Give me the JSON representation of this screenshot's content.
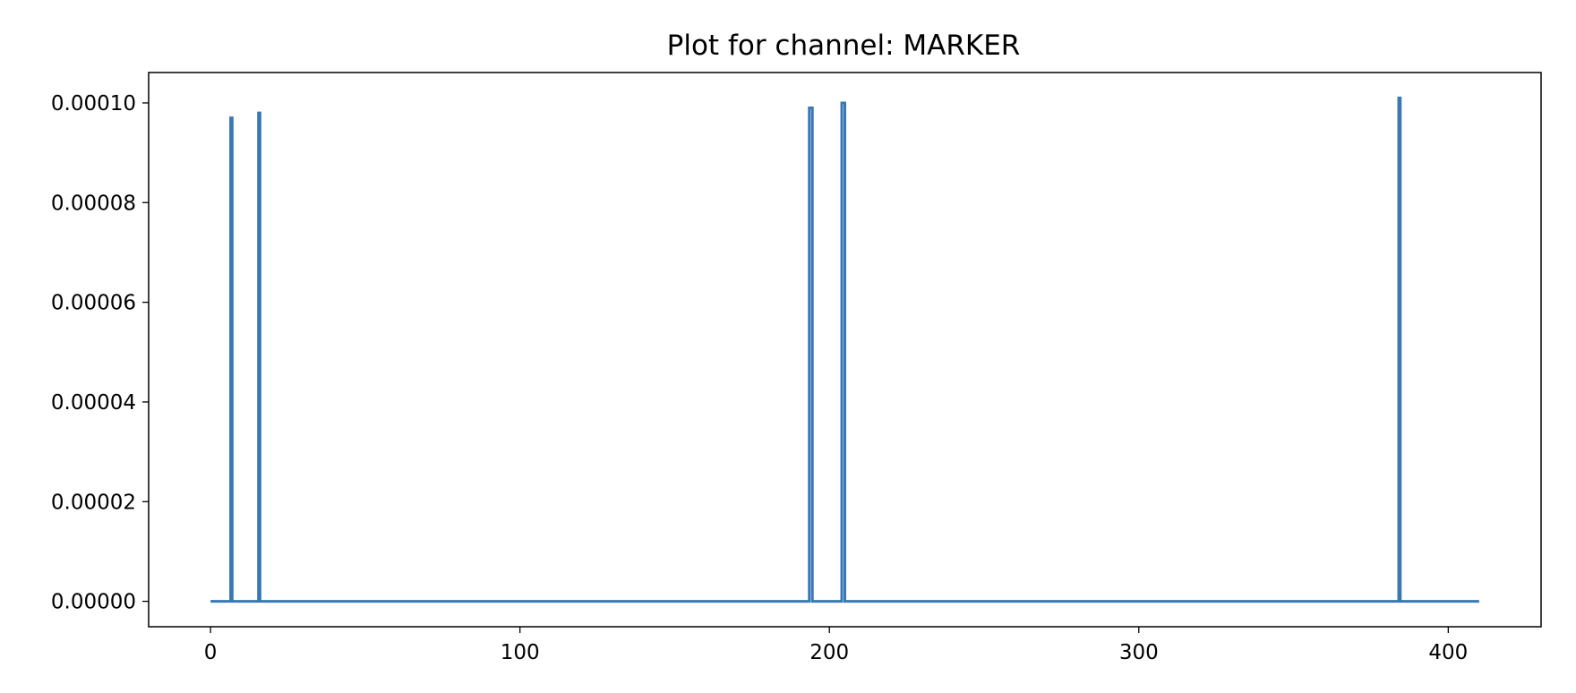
{
  "chart_data": {
    "type": "line",
    "title": "Plot for channel: MARKER",
    "xlabel": "",
    "ylabel": "",
    "xlim": [
      -20,
      430
    ],
    "ylim": [
      -5.1e-06,
      0.0001061
    ],
    "xticks": [
      0,
      100,
      200,
      300,
      400
    ],
    "xtick_labels": [
      "0",
      "100",
      "200",
      "300",
      "400"
    ],
    "yticks": [
      0,
      2e-05,
      4e-05,
      6e-05,
      8e-05,
      0.0001
    ],
    "ytick_labels": [
      "0.00000",
      "0.00002",
      "0.00004",
      "0.00006",
      "0.00008",
      "0.00010"
    ],
    "grid": false,
    "legend": "none",
    "series": [
      {
        "color": "#3a78b5",
        "x": [
          0,
          6.5,
          6.5,
          7,
          7,
          15.5,
          15.5,
          16,
          16,
          193.5,
          193.5,
          194.5,
          194.5,
          204,
          204,
          205,
          205,
          384,
          384,
          384.5,
          384.5,
          410
        ],
        "y": [
          0,
          0,
          9.7e-05,
          9.7e-05,
          0,
          0,
          9.8e-05,
          9.8e-05,
          0,
          0,
          9.9e-05,
          9.9e-05,
          0,
          0,
          0.0001,
          0.0001,
          0,
          0,
          0.000101,
          0.000101,
          0,
          0
        ]
      }
    ]
  }
}
